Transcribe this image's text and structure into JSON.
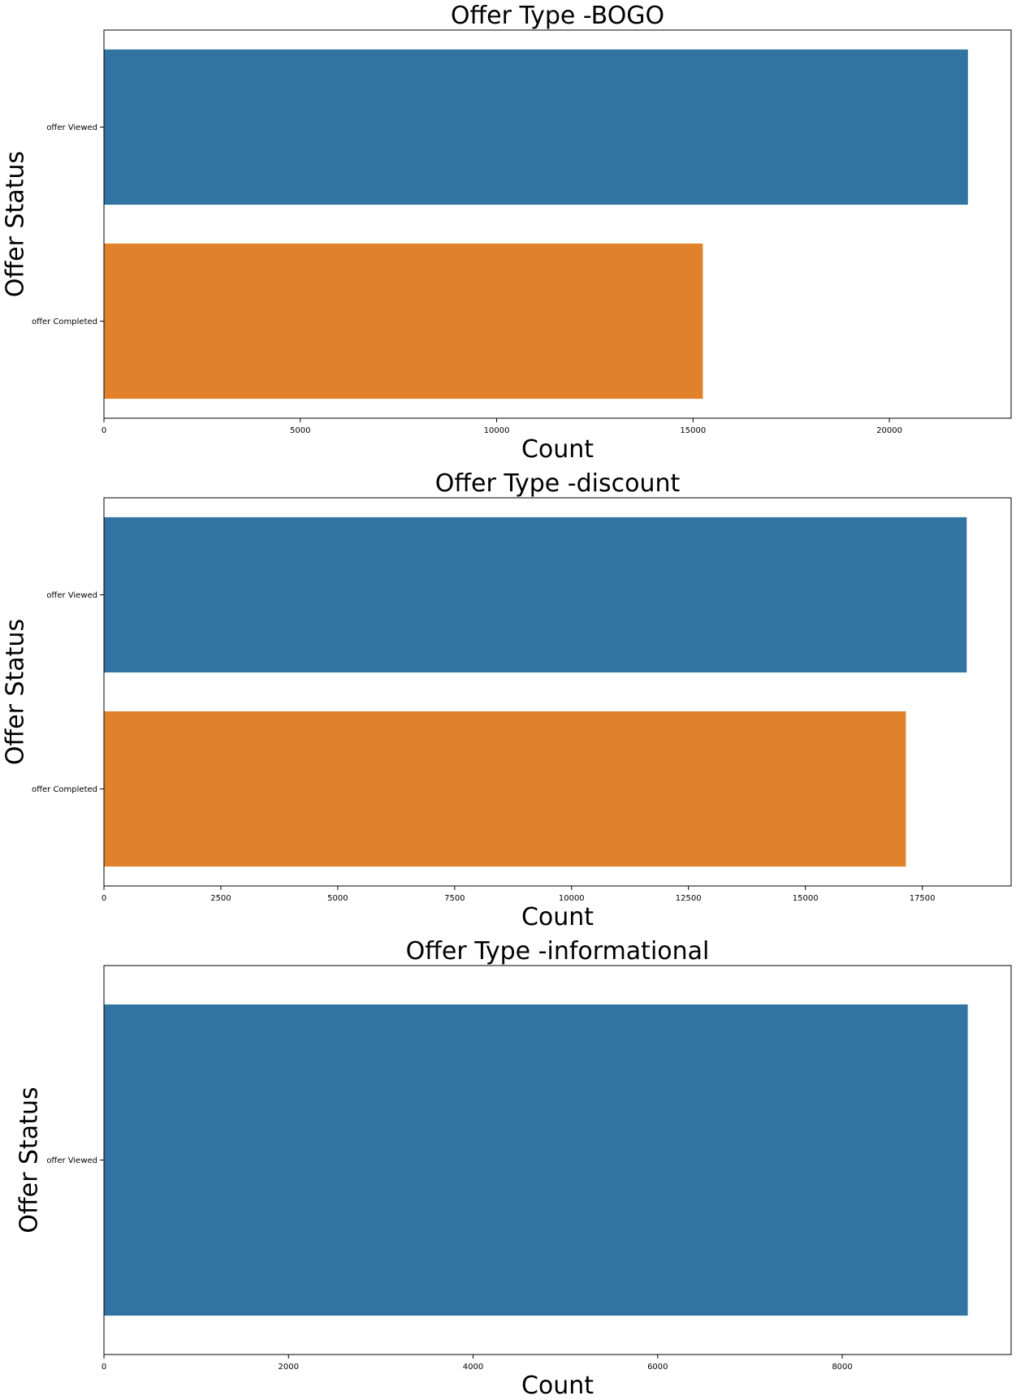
{
  "chart_data": [
    {
      "type": "bar",
      "orientation": "horizontal",
      "title": "Offer Type -BOGO",
      "xlabel": "Count",
      "ylabel": "Offer Status",
      "categories": [
        "offer Viewed",
        "offer Completed"
      ],
      "values": [
        22000,
        15250
      ],
      "colors": [
        "#3274a1",
        "#e1812c"
      ],
      "xlim": [
        0,
        23100
      ],
      "xticks": [
        0,
        5000,
        10000,
        15000,
        20000
      ],
      "grid": false
    },
    {
      "type": "bar",
      "orientation": "horizontal",
      "title": "Offer Type -discount",
      "xlabel": "Count",
      "ylabel": "Offer Status",
      "categories": [
        "offer Viewed",
        "offer Completed"
      ],
      "values": [
        18450,
        17150
      ],
      "colors": [
        "#3274a1",
        "#e1812c"
      ],
      "xlim": [
        0,
        19400
      ],
      "xticks": [
        0,
        2500,
        5000,
        7500,
        10000,
        12500,
        15000,
        17500
      ],
      "grid": false
    },
    {
      "type": "bar",
      "orientation": "horizontal",
      "title": "Offer Type -informational",
      "xlabel": "Count",
      "ylabel": "Offer Status",
      "categories": [
        "offer Viewed"
      ],
      "values": [
        9360
      ],
      "colors": [
        "#3274a1"
      ],
      "xlim": [
        0,
        9830
      ],
      "xticks": [
        0,
        2000,
        4000,
        6000,
        8000
      ],
      "grid": false
    }
  ]
}
